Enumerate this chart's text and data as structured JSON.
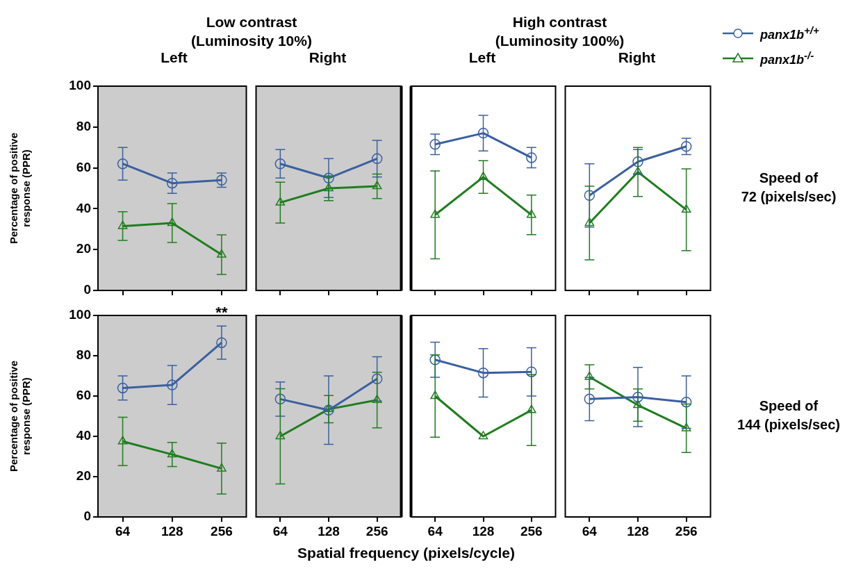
{
  "chart_data": [
    {
      "type": "line",
      "title": "Left",
      "ylabel": "Percentage of positive\nresponse (PPR)",
      "annotations": [
        "Low contrast\n(Luminosity 10%)"
      ],
      "categories": [
        "64",
        "128",
        "256"
      ],
      "ylim": [
        0,
        100
      ],
      "yticks": [
        0,
        20,
        40,
        60,
        80,
        100
      ],
      "tick_labels": "y",
      "series": [
        {
          "color": "#3a5fa0",
          "marker": "circle",
          "values": [
            62,
            52.5,
            54
          ],
          "errors": [
            8,
            5,
            3.5
          ]
        },
        {
          "color": "#1e7d1e",
          "marker": "triangle",
          "values": [
            31.5,
            33,
            17.5
          ],
          "errors": [
            7,
            9.5,
            9.7
          ]
        }
      ]
    },
    {
      "type": "line",
      "title": "Right",
      "categories": [
        "64",
        "128",
        "256"
      ],
      "ylim": [
        0,
        100
      ],
      "yticks": [
        0,
        20,
        40,
        60,
        80,
        100
      ],
      "tick_labels": false,
      "series": [
        {
          "color": "#3a5fa0",
          "marker": "circle",
          "values": [
            62,
            55,
            64.5
          ],
          "errors": [
            7,
            9.5,
            9
          ]
        },
        {
          "color": "#1e7d1e",
          "marker": "triangle",
          "values": [
            43,
            50,
            51
          ],
          "errors": [
            10,
            6,
            6
          ]
        }
      ]
    },
    {
      "type": "line",
      "title": "Left",
      "annotations": [
        "High contrast\n(Luminosity 100%)"
      ],
      "categories": [
        "64",
        "128",
        "256"
      ],
      "ylim": [
        0,
        100
      ],
      "yticks": [
        0,
        20,
        40,
        60,
        80,
        100
      ],
      "tick_labels": false,
      "series": [
        {
          "color": "#3a5fa0",
          "marker": "circle",
          "values": [
            71.5,
            77,
            65
          ],
          "errors": [
            5,
            8.7,
            5
          ]
        },
        {
          "color": "#1e7d1e",
          "marker": "triangle",
          "values": [
            37,
            55.5,
            37
          ],
          "errors": [
            21.5,
            8,
            9.7
          ]
        }
      ]
    },
    {
      "type": "line",
      "title": "Right",
      "annotations": [
        "Speed of\n72 (pixels/sec)"
      ],
      "legend": "top right",
      "categories": [
        "64",
        "128",
        "256"
      ],
      "ylim": [
        0,
        100
      ],
      "yticks": [
        0,
        20,
        40,
        60,
        80,
        100
      ],
      "tick_labels": false,
      "series": [
        {
          "name": "panx1b$^{+/+}$",
          "color": "#3a5fa0",
          "marker": "circle",
          "values": [
            46.5,
            63,
            70.5
          ],
          "errors": [
            15.5,
            6,
            4
          ]
        },
        {
          "name": "panx1b$^{-/-}$",
          "color": "#1e7d1e",
          "marker": "triangle",
          "values": [
            33,
            58,
            39.5
          ],
          "errors": [
            18,
            12,
            20
          ]
        }
      ]
    },
    {
      "type": "line",
      "xlabel": "Spatial frequency (pixels/cycle)",
      "ylabel": "Percentage of positive\nresponse (PPR)",
      "annotations": [
        {
          "text": "**",
          "x": "256",
          "y": 86.5
        }
      ],
      "categories": [
        "64",
        "128",
        "256"
      ],
      "ylim": [
        0,
        100
      ],
      "yticks": [
        0,
        20,
        40,
        60,
        80,
        100
      ],
      "series": [
        {
          "color": "#3a5fa0",
          "marker": "circle",
          "values": [
            64,
            65.5,
            86.5
          ],
          "errors": [
            6,
            9.7,
            8.2
          ]
        },
        {
          "color": "#1e7d1e",
          "marker": "triangle",
          "values": [
            37.5,
            31,
            24
          ],
          "errors": [
            12,
            6,
            12.6
          ]
        }
      ]
    },
    {
      "type": "line",
      "categories": [
        "64",
        "128",
        "256"
      ],
      "ylim": [
        0,
        100
      ],
      "yticks": [
        0,
        20,
        40,
        60,
        80,
        100
      ],
      "tick_labels": "x",
      "series": [
        {
          "color": "#3a5fa0",
          "marker": "circle",
          "values": [
            58.5,
            53,
            68.5
          ],
          "errors": [
            8.5,
            17,
            11
          ]
        },
        {
          "color": "#1e7d1e",
          "marker": "triangle",
          "values": [
            40,
            53.5,
            58
          ],
          "errors": [
            23.6,
            6.8,
            13.8
          ]
        }
      ]
    },
    {
      "type": "line",
      "categories": [
        "64",
        "128",
        "256"
      ],
      "ylim": [
        0,
        100
      ],
      "yticks": [
        0,
        20,
        40,
        60,
        80,
        100
      ],
      "tick_labels": "x",
      "series": [
        {
          "color": "#3a5fa0",
          "marker": "circle",
          "values": [
            78,
            71.5,
            72
          ],
          "errors": [
            8.7,
            12,
            12
          ]
        },
        {
          "color": "#1e7d1e",
          "marker": "triangle",
          "values": [
            60,
            40,
            53
          ],
          "errors": [
            20.4,
            null,
            17.6
          ]
        }
      ]
    },
    {
      "type": "line",
      "annotations": [
        "Speed of\n144 (pixels/sec)"
      ],
      "categories": [
        "64",
        "128",
        "256"
      ],
      "ylim": [
        0,
        100
      ],
      "yticks": [
        0,
        20,
        40,
        60,
        80,
        100
      ],
      "tick_labels": "x",
      "series": [
        {
          "color": "#3a5fa0",
          "marker": "circle",
          "values": [
            58.5,
            59.5,
            57
          ],
          "errors": [
            10.7,
            14.7,
            13
          ]
        },
        {
          "color": "#1e7d1e",
          "marker": "triangle",
          "values": [
            69.5,
            55.5,
            44
          ],
          "errors": [
            6,
            8,
            12
          ]
        }
      ]
    }
  ]
}
